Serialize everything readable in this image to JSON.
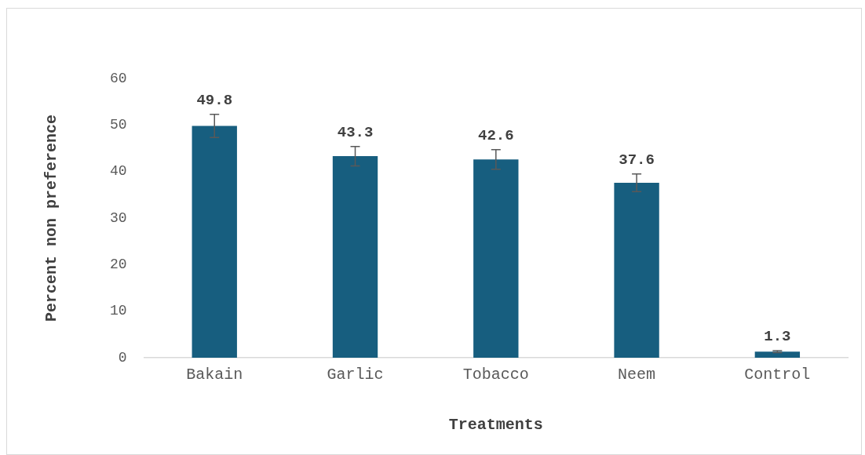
{
  "chart_data": {
    "type": "bar",
    "xlabel": "Treatments",
    "ylabel": "Percent non preference",
    "categories": [
      "Bakain",
      "Garlic",
      "Tobacco",
      "Neem",
      "Control"
    ],
    "values": [
      49.8,
      43.3,
      42.6,
      37.6,
      1.3
    ],
    "errors": [
      2.5,
      2.1,
      2.1,
      1.9,
      0.2
    ],
    "color": "#175e7f",
    "ylim": [
      0,
      60
    ],
    "yticks": [
      0,
      10,
      20,
      30,
      40,
      50,
      60
    ],
    "grid": false,
    "legend": false,
    "data_labels": true
  }
}
